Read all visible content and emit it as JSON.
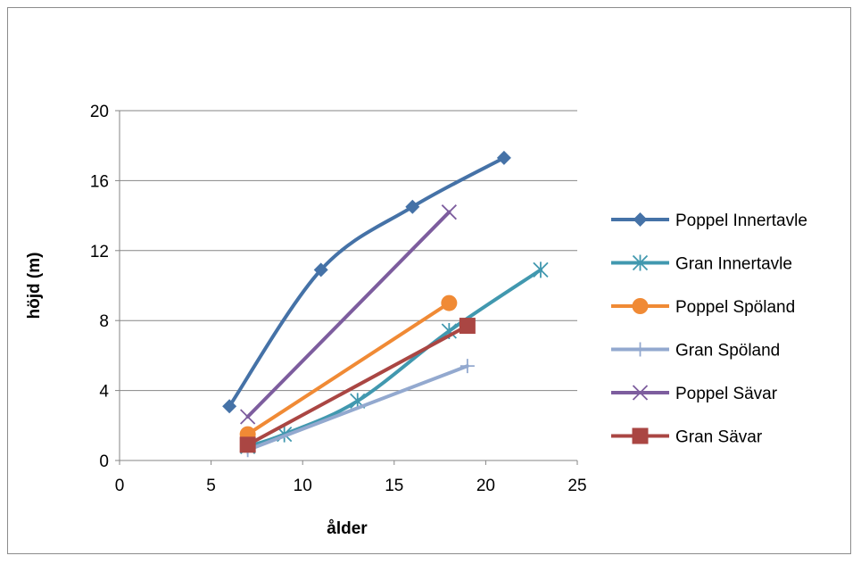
{
  "chart_data": {
    "type": "line",
    "title": "",
    "xlabel": "ålder",
    "ylabel": "höjd (m)",
    "xlim": [
      0,
      25
    ],
    "ylim": [
      0,
      20
    ],
    "xticks": [
      0,
      5,
      10,
      15,
      20,
      25
    ],
    "yticks": [
      0,
      4,
      8,
      12,
      16,
      20
    ],
    "grid": "horizontal",
    "legend": "right",
    "series": [
      {
        "name": "Poppel Innertavle",
        "color": "#4572a7",
        "marker": "diamond",
        "smooth": true,
        "points": [
          [
            6,
            3.1
          ],
          [
            11,
            10.9
          ],
          [
            16,
            14.5
          ],
          [
            21,
            17.3
          ]
        ]
      },
      {
        "name": "Gran Innertavle",
        "color": "#4198af",
        "marker": "asterisk",
        "smooth": true,
        "points": [
          [
            7,
            0.8
          ],
          [
            9,
            1.5
          ],
          [
            13,
            3.4
          ],
          [
            18,
            7.4
          ],
          [
            23,
            10.9
          ]
        ]
      },
      {
        "name": "Poppel Spöland",
        "color": "#f08a35",
        "marker": "circle",
        "smooth": false,
        "points": [
          [
            7,
            1.5
          ],
          [
            18,
            9.0
          ]
        ]
      },
      {
        "name": "Gran Spöland",
        "color": "#93a9cf",
        "marker": "plus",
        "smooth": false,
        "points": [
          [
            7,
            0.6
          ],
          [
            19,
            5.4
          ]
        ]
      },
      {
        "name": "Poppel Sävar",
        "color": "#7d5d9e",
        "marker": "x",
        "smooth": false,
        "points": [
          [
            7,
            2.5
          ],
          [
            18,
            14.2
          ]
        ]
      },
      {
        "name": "Gran Sävar",
        "color": "#aa4643",
        "marker": "square",
        "smooth": false,
        "points": [
          [
            7,
            0.9
          ],
          [
            19,
            7.7
          ]
        ]
      }
    ]
  }
}
